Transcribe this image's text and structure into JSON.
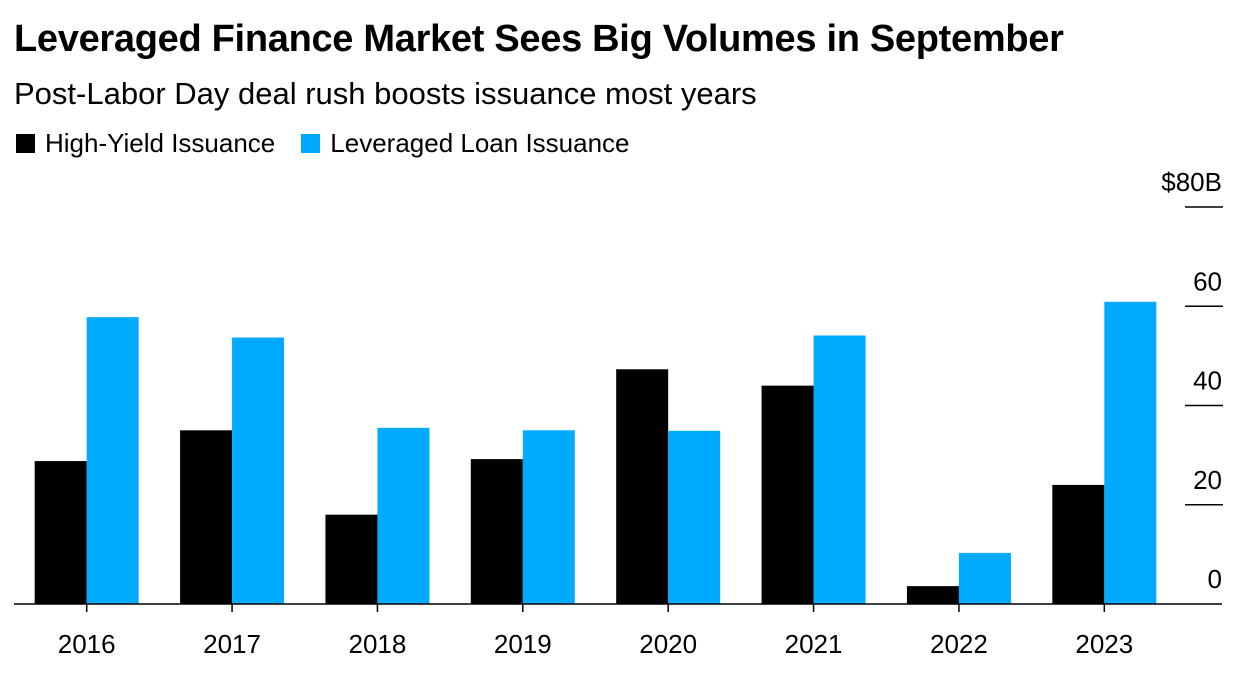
{
  "title": "Leveraged Finance Market Sees Big Volumes in September",
  "subtitle": "Post-Labor Day deal rush boosts issuance most years",
  "legend": {
    "items": [
      {
        "label": "High-Yield Issuance",
        "color": "#000000"
      },
      {
        "label": "Leveraged Loan Issuance",
        "color": "#00aaff"
      }
    ]
  },
  "chart_data": {
    "type": "bar",
    "title": "Leveraged Finance Market Sees Big Volumes in September",
    "subtitle": "Post-Labor Day deal rush boosts issuance most years",
    "xlabel": "",
    "ylabel": "",
    "categories": [
      "2016",
      "2017",
      "2018",
      "2019",
      "2020",
      "2021",
      "2022",
      "2023"
    ],
    "series": [
      {
        "name": "High-Yield Issuance",
        "color": "#000000",
        "values": [
          28.8,
          35,
          18,
          29.2,
          47.3,
          44,
          3.6,
          24
        ]
      },
      {
        "name": "Leveraged Loan Issuance",
        "color": "#00aaff",
        "values": [
          57.8,
          53.7,
          35.5,
          35,
          34.9,
          54.1,
          10.3,
          60.9
        ]
      }
    ],
    "ylim": [
      0,
      80
    ],
    "yticks": [
      {
        "value": 0,
        "label": "0"
      },
      {
        "value": 20,
        "label": "20"
      },
      {
        "value": 40,
        "label": "40"
      },
      {
        "value": 60,
        "label": "60"
      },
      {
        "value": 80,
        "label": "$80B"
      }
    ],
    "grid": false,
    "legend_position": "top-left",
    "axis_position": "right"
  }
}
